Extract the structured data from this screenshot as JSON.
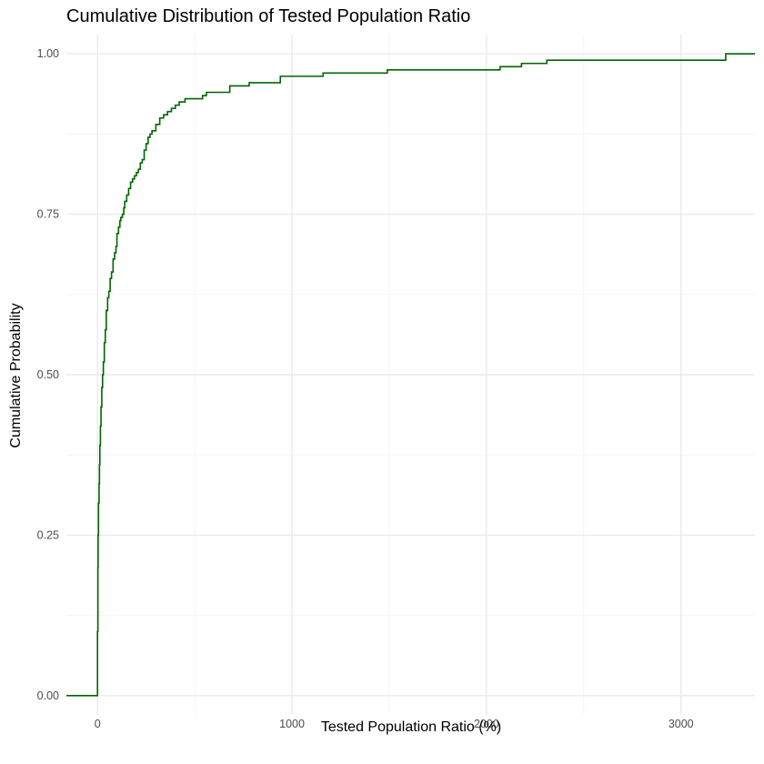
{
  "chart_data": {
    "type": "line",
    "subtype": "ecdf-step",
    "title": "Cumulative Distribution of Tested Population Ratio",
    "xlabel": "Tested Population Ratio (%)",
    "ylabel": "Cumulative Probability",
    "xlim": [
      -160,
      3380
    ],
    "ylim": [
      -0.03,
      1.03
    ],
    "x_ticks": [
      0,
      1000,
      2000,
      3000
    ],
    "x_tick_labels": [
      "0",
      "1000",
      "2000",
      "3000"
    ],
    "y_ticks": [
      0,
      0.25,
      0.5,
      0.75,
      1.0
    ],
    "y_tick_labels": [
      "0.00",
      "0.25",
      "0.50",
      "0.75",
      "1.00"
    ],
    "x_minor_ticks": [
      500,
      1500,
      2500
    ],
    "y_minor_ticks": [
      0.125,
      0.375,
      0.625,
      0.875
    ],
    "grid": true,
    "line_color": "#006400",
    "series": [
      {
        "x": [
          -160,
          0,
          2,
          3,
          5,
          8,
          10,
          12,
          15,
          18,
          22,
          26,
          30,
          35,
          40,
          45,
          52,
          58,
          65,
          72,
          80,
          88,
          95,
          100,
          108,
          115,
          120,
          128,
          135,
          140,
          150,
          160,
          170,
          180,
          190,
          200,
          210,
          220,
          230,
          240,
          250,
          260,
          270,
          280,
          300,
          320,
          340,
          360,
          380,
          400,
          420,
          450,
          540,
          560,
          680,
          780,
          940,
          1160,
          1490,
          2070,
          2180,
          2310,
          3230,
          3380
        ],
        "y": [
          0.0,
          0.1,
          0.2,
          0.25,
          0.3,
          0.33,
          0.36,
          0.39,
          0.42,
          0.45,
          0.48,
          0.5,
          0.52,
          0.55,
          0.57,
          0.6,
          0.62,
          0.63,
          0.65,
          0.66,
          0.68,
          0.69,
          0.7,
          0.72,
          0.73,
          0.74,
          0.745,
          0.75,
          0.76,
          0.77,
          0.78,
          0.79,
          0.8,
          0.805,
          0.81,
          0.815,
          0.82,
          0.83,
          0.835,
          0.85,
          0.86,
          0.87,
          0.875,
          0.88,
          0.89,
          0.9,
          0.905,
          0.91,
          0.915,
          0.92,
          0.925,
          0.93,
          0.935,
          0.94,
          0.95,
          0.955,
          0.965,
          0.97,
          0.975,
          0.98,
          0.985,
          0.99,
          1.0,
          1.0
        ]
      }
    ]
  }
}
